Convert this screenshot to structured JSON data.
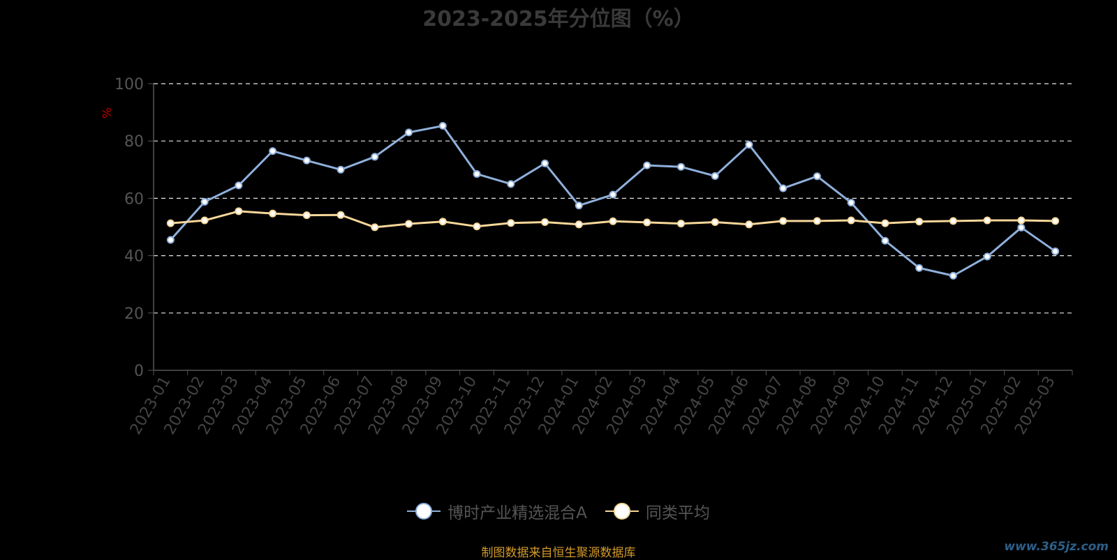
{
  "chart_data": {
    "type": "line",
    "title": "2023-2025年分位图（%）",
    "ylabel": "%",
    "ylim": [
      0,
      100
    ],
    "yticks": [
      0,
      20,
      40,
      60,
      80,
      100
    ],
    "grid": true,
    "legend_position": "bottom-center",
    "categories": [
      "2023-01",
      "2023-02",
      "2023-03",
      "2023-04",
      "2023-05",
      "2023-06",
      "2023-07",
      "2023-08",
      "2023-09",
      "2023-10",
      "2023-11",
      "2023-12",
      "2024-01",
      "2024-02",
      "2024-03",
      "2024-04",
      "2024-05",
      "2024-06",
      "2024-07",
      "2024-08",
      "2024-09",
      "2024-10",
      "2024-11",
      "2024-12",
      "2025-01",
      "2025-02",
      "2025-03"
    ],
    "series": [
      {
        "name": "博时产业精选混合A",
        "color": "#8fb0dc",
        "values": [
          45.5,
          58.8,
          64.5,
          76.5,
          73.2,
          70.0,
          74.5,
          83.0,
          85.3,
          68.5,
          65.0,
          72.2,
          57.5,
          61.3,
          71.5,
          71.0,
          67.8,
          78.7,
          63.5,
          67.7,
          58.5,
          45.2,
          35.7,
          33.0,
          39.7,
          49.8,
          41.5
        ]
      },
      {
        "name": "同类平均",
        "color": "#f6d79a",
        "values": [
          51.3,
          52.3,
          55.5,
          54.7,
          54.1,
          54.2,
          49.9,
          51.1,
          51.9,
          50.2,
          51.4,
          51.7,
          50.9,
          52.0,
          51.6,
          51.2,
          51.7,
          50.9,
          52.1,
          52.1,
          52.3,
          51.3,
          51.9,
          52.1,
          52.3,
          52.3,
          52.1
        ]
      }
    ]
  },
  "footer": {
    "source": "制图数据来自恒生聚源数据库",
    "watermark": "www.365jz.com"
  }
}
